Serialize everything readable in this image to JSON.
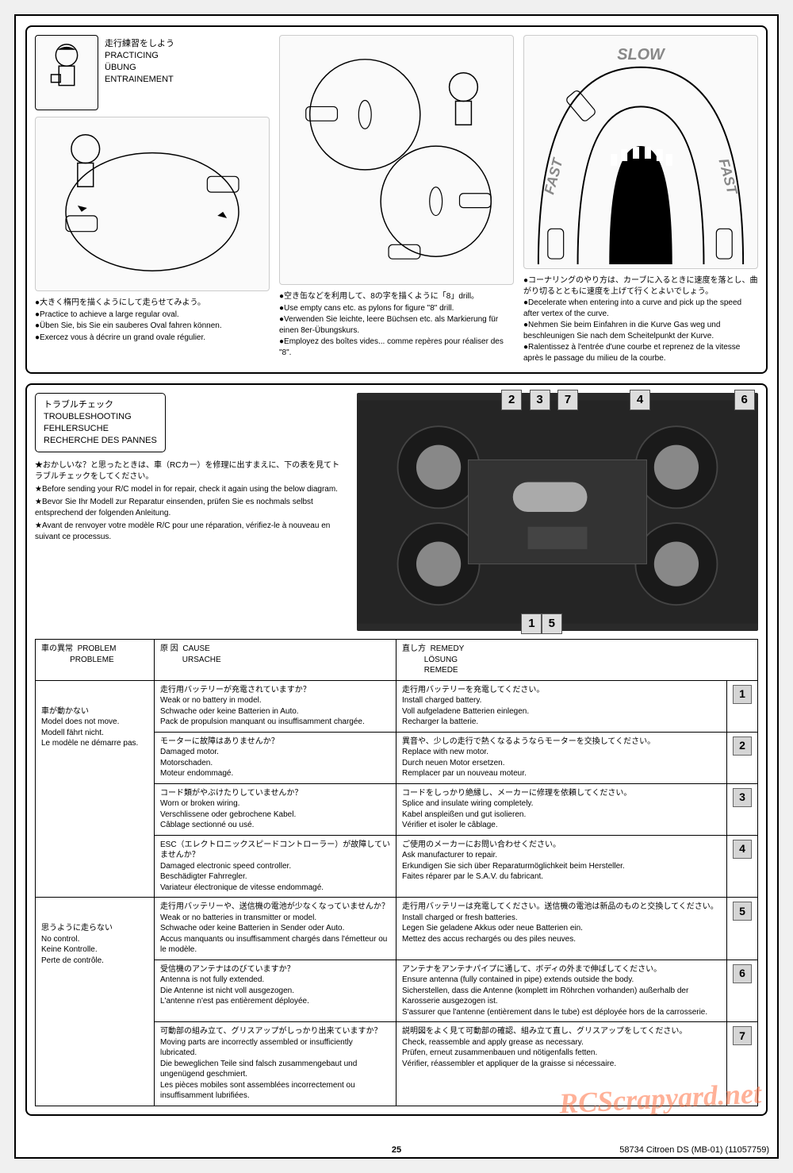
{
  "practicing": {
    "header": {
      "jp": "走行練習をしよう",
      "en": "PRACTICING",
      "de": "ÜBUNG",
      "fr": "ENTRAINEMENT"
    },
    "col1": {
      "jp": "●大きく楕円を描くようにして走らせてみよう。",
      "en": "●Practice to achieve a large regular oval.",
      "de": "●Üben Sie, bis Sie ein sauberes Oval fahren können.",
      "fr": "●Exercez vous à décrire un grand ovale régulier."
    },
    "col2": {
      "jp": "●空き缶などを利用して、8の字を描くように「8」drill。",
      "en": "●Use empty cans etc. as pylons for figure \"8\" drill.",
      "de": "●Verwenden Sie leichte, leere Büchsen etc. als Markierung für einen 8er-Übungskurs.",
      "fr": "●Employez des boîtes vides... comme repères pour réaliser des \"8\"."
    },
    "col3": {
      "jp": "●コーナリングのやり方は、カーブに入るときに速度を落とし、曲がり切るとともに速度を上げて行くとよいでしょう。",
      "en": "●Decelerate when entering into a curve and pick up the speed after vertex of the curve.",
      "de": "●Nehmen Sie beim Einfahren in die Kurve Gas weg und beschleunigen Sie nach dem Scheitelpunkt der Kurve.",
      "fr": "●Ralentissez à l'entrée d'une courbe et reprenez de la vitesse après le passage du milieu de la courbe."
    }
  },
  "trouble": {
    "title": {
      "jp": "トラブルチェック",
      "en": "TROUBLESHOOTING",
      "de": "FEHLERSUCHE",
      "fr": "RECHERCHE DES PANNES"
    },
    "intro": {
      "jp": "★おかしいな？と思ったときは、車（RCカー）を修理に出すまえに、下の表を見てトラブルチェックをしてください。",
      "en": "★Before sending your R/C model in for repair, check it again using the below diagram.",
      "de": "★Bevor Sie Ihr Modell zur Reparatur einsenden, prüfen Sie es nochmals selbst entsprechend der folgenden Anleitung.",
      "fr": "★Avant de renvoyer votre modèle R/C pour une réparation, vérifiez-le à nouveau en suivant ce processus."
    },
    "headers": {
      "problem_jp": "車の異常",
      "problem_en": "PROBLEM",
      "problem_de": "PROBLEME",
      "cause_jp": "原 因",
      "cause_en": "CAUSE",
      "cause_de": "URSACHE",
      "remedy_jp": "直し方",
      "remedy_en": "REMEDY",
      "remedy_de": "LÖSUNG",
      "remedy_fr": "REMEDE"
    },
    "problems": {
      "p1": {
        "jp": "車が動かない",
        "en": "Model does not move.",
        "de": "Modell fährt nicht.",
        "fr": "Le modèle ne démarre pas."
      },
      "p2": {
        "jp": "思うように走らない",
        "en": "No control.",
        "de": "Keine Kontrolle.",
        "fr": "Perte de contrôle."
      }
    },
    "rows": {
      "r1": {
        "cause_jp": "走行用バッテリーが充電されていますか？",
        "cause_en": "Weak or no battery in model.",
        "cause_de": "Schwache oder keine Batterien in Auto.",
        "cause_fr": "Pack de propulsion manquant ou insuffisamment chargée.",
        "remedy_jp": "走行用バッテリーを充電してください。",
        "remedy_en": "Install charged battery.",
        "remedy_de": "Voll aufgeladene Batterien einlegen.",
        "remedy_fr": "Recharger la batterie.",
        "num": "1"
      },
      "r2": {
        "cause_jp": "モーターに故障はありませんか？",
        "cause_en": "Damaged motor.",
        "cause_de": "Motorschaden.",
        "cause_fr": "Moteur endommagé.",
        "remedy_jp": "異音や、少しの走行で熱くなるようならモーターを交換してください。",
        "remedy_en": "Replace with new motor.",
        "remedy_de": "Durch neuen Motor ersetzen.",
        "remedy_fr": "Remplacer par un nouveau moteur.",
        "num": "2"
      },
      "r3": {
        "cause_jp": "コード類がやぶけたりしていませんか？",
        "cause_en": "Worn or broken wiring.",
        "cause_de": "Verschlissene oder gebrochene Kabel.",
        "cause_fr": "Câblage sectionné ou usé.",
        "remedy_jp": "コードをしっかり絶縁し、メーカーに修理を依頼してください。",
        "remedy_en": "Splice and insulate wiring completely.",
        "remedy_de": "Kabel anspleißen und gut isolieren.",
        "remedy_fr": "Vérifier et isoler le câblage.",
        "num": "3"
      },
      "r4": {
        "cause_jp": "ESC（エレクトロニックスピードコントローラー）が故障していませんか？",
        "cause_en": "Damaged electronic speed controller.",
        "cause_de": "Beschädigter Fahrregler.",
        "cause_fr": "Variateur électronique de vitesse endommagé.",
        "remedy_jp": "ご使用のメーカーにお問い合わせください。",
        "remedy_en": "Ask manufacturer to repair.",
        "remedy_de": "Erkundigen Sie sich über Reparaturmöglichkeit beim Hersteller.",
        "remedy_fr": "Faites réparer par le S.A.V. du fabricant.",
        "num": "4"
      },
      "r5": {
        "cause_jp": "走行用バッテリーや、送信機の電池が少なくなっていませんか？",
        "cause_en": "Weak or no batteries in transmitter or model.",
        "cause_de": "Schwache oder keine Batterien in Sender oder Auto.",
        "cause_fr": "Accus manquants ou insuffisamment chargés dans l'émetteur ou le modèle.",
        "remedy_jp": "走行用バッテリーは充電してください。送信機の電池は新品のものと交換してください。",
        "remedy_en": "Install charged or fresh batteries.",
        "remedy_de": "Legen Sie geladene Akkus oder neue Batterien ein.",
        "remedy_fr": "Mettez des accus rechargés ou des piles neuves.",
        "num": "5"
      },
      "r6": {
        "cause_jp": "受信機のアンテナはのびていますか？",
        "cause_en": "Antenna is not fully extended.",
        "cause_de": "Die Antenne ist nicht voll ausgezogen.",
        "cause_fr": "L'antenne n'est pas entièrement déployée.",
        "remedy_jp": "アンテナをアンテナパイプに通して、ボディの外まで伸ばしてください。",
        "remedy_en": "Ensure antenna (fully contained in pipe) extends outside the body.",
        "remedy_de": "Sicherstellen, dass die Antenne (komplett im Röhrchen vorhanden) außerhalb der Karosserie ausgezogen ist.",
        "remedy_fr": "S'assurer que l'antenne (entièrement dans le tube) est déployée hors de la carrosserie.",
        "num": "6"
      },
      "r7": {
        "cause_jp": "可動部の組み立て、グリスアップがしっかり出来ていますか？",
        "cause_en": "Moving parts are incorrectly assembled or insufficiently lubricated.",
        "cause_de": "Die beweglichen Teile sind falsch zusammengebaut und ungenügend geschmiert.",
        "cause_fr": "Les pièces mobiles sont assemblées incorrectement ou insuffisamment lubrifiées.",
        "remedy_jp": "説明図をよく見て可動部の確認、組み立て直し、グリスアップをしてください。",
        "remedy_en": "Check, reassemble and apply grease as necessary.",
        "remedy_de": "Prüfen, erneut zusammenbauen und nötigenfalls fetten.",
        "remedy_fr": "Vérifier, réassembler et appliquer de la graisse si nécessaire.",
        "num": "7"
      }
    },
    "markers": [
      {
        "num": "2",
        "left": "36%"
      },
      {
        "num": "3",
        "left": "43%"
      },
      {
        "num": "7",
        "left": "50%"
      },
      {
        "num": "4",
        "left": "68%"
      },
      {
        "num": "6",
        "left": "94%"
      }
    ],
    "bottom_markers": [
      {
        "num": "1",
        "left": "41%"
      },
      {
        "num": "5",
        "left": "46%"
      }
    ]
  },
  "footer": {
    "page": "25",
    "ref": "58734  Citroen DS (MB-01)  (11057759)"
  },
  "watermark": "RCScrapyard.net"
}
